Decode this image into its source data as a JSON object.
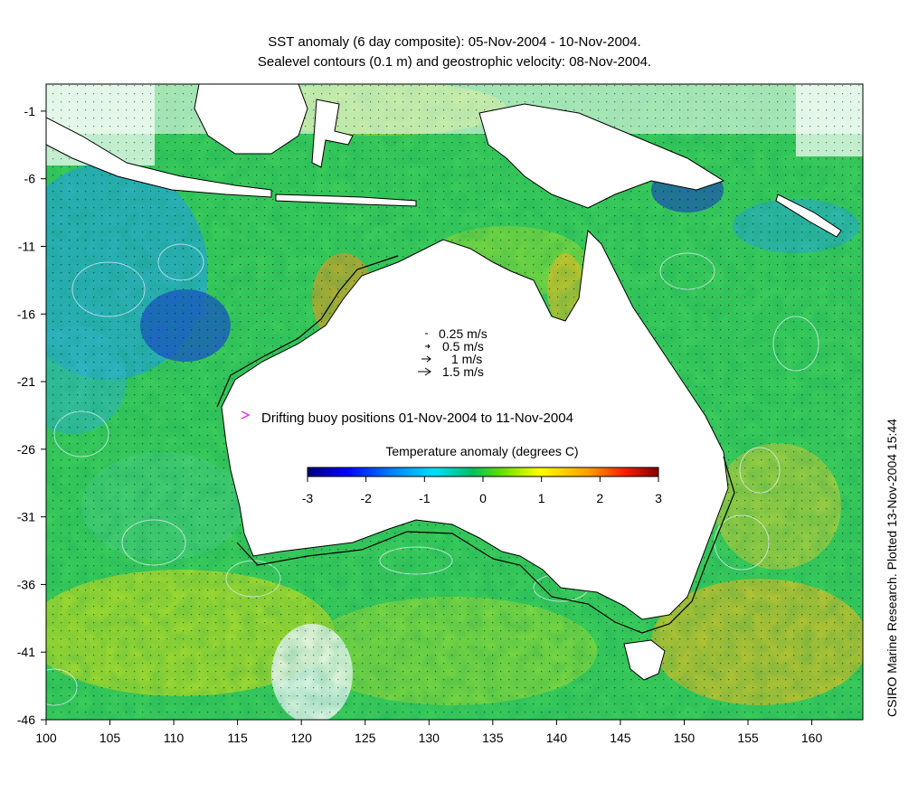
{
  "title": {
    "line1": "SST anomaly (6 day composite): 05-Nov-2004 - 10-Nov-2004.",
    "line2": "Sealevel contours (0.1 m) and geostrophic velocity: 08-Nov-2004."
  },
  "credit": "CSIRO Marine Research. Plotted 13-Nov-2004 15:44",
  "velocity_legend": [
    {
      "label": "0.25 m/s",
      "speed": 0.25
    },
    {
      "label": "0.5 m/s",
      "speed": 0.5
    },
    {
      "label": "1 m/s",
      "speed": 1
    },
    {
      "label": "1.5 m/s",
      "speed": 1.5
    }
  ],
  "buoy_legend": {
    "label": "Drifting buoy positions 01-Nov-2004 to 11-Nov-2004",
    "color": "#ff00ff"
  },
  "colorbar": {
    "title": "Temperature anomaly (degrees C)",
    "min": -3,
    "max": 3,
    "ticks": [
      "-3",
      "-2",
      "-1",
      "0",
      "1",
      "2",
      "3"
    ],
    "colors": [
      "#00007f",
      "#0000ff",
      "#0080ff",
      "#00ffff",
      "#00c040",
      "#80ff00",
      "#ffff00",
      "#ff8000",
      "#ff0000",
      "#7f0000"
    ]
  },
  "chart_data": {
    "type": "heatmap",
    "x_ticks": [
      "100",
      "105",
      "110",
      "115",
      "120",
      "125",
      "130",
      "135",
      "140",
      "145",
      "150",
      "155",
      "160"
    ],
    "y_ticks": [
      "-1",
      "-6",
      "-11",
      "-16",
      "-21",
      "-26",
      "-31",
      "-36",
      "-41",
      "-46"
    ],
    "xlim": [
      100,
      164
    ],
    "ylim": [
      -46,
      1
    ]
  }
}
